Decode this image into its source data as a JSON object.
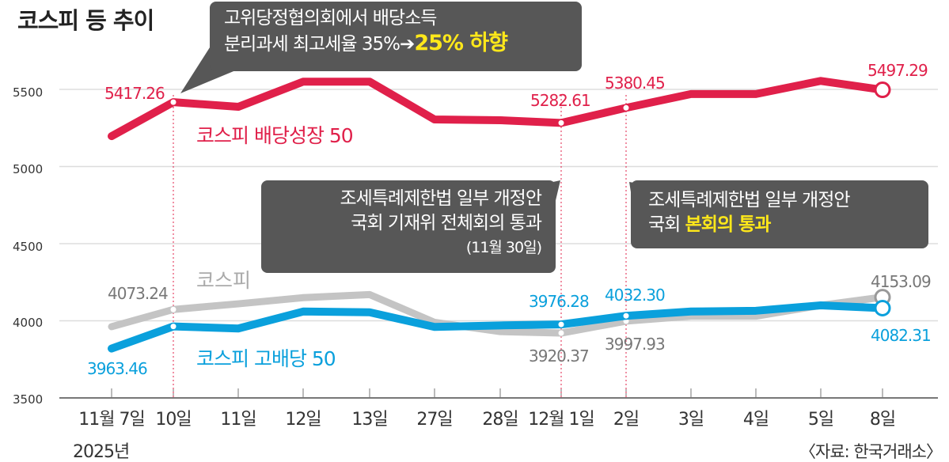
{
  "chart_data": {
    "type": "line",
    "title": "코스피 등 추이",
    "categories": [
      "11월 7일",
      "10일",
      "11일",
      "12일",
      "13일",
      "27일",
      "28일",
      "12월 1일",
      "2일",
      "3일",
      "4일",
      "5일",
      "8일"
    ],
    "year_label": "2025년",
    "source": "〈자료: 한국거래소〉",
    "ylim": [
      3500,
      5600
    ],
    "yticks": [
      "5500",
      "5000",
      "4500",
      "4000",
      "3500"
    ],
    "grid": true,
    "series": [
      {
        "name": "코스피 배당성장 50",
        "color": "#e0204a",
        "values": [
          5197,
          5417.26,
          5387,
          5550,
          5550,
          5305,
          5300,
          5282.61,
          5380.45,
          5470,
          5470,
          5555,
          5497.29
        ]
      },
      {
        "name": "코스피",
        "color": "#c4c4c4",
        "values": [
          3962,
          4073.24,
          4110,
          4150,
          4170,
          3990,
          3930,
          3920.37,
          3997.93,
          4030,
          4030,
          4100,
          4153.09
        ]
      },
      {
        "name": "코스피 고배당 50",
        "color": "#0aa0dc",
        "values": [
          3820,
          3963.46,
          3950,
          4060,
          4055,
          3960,
          3970,
          3976.28,
          4032.3,
          4060,
          4065,
          4100,
          4082.31
        ]
      }
    ],
    "data_labels": {
      "red_10": "5417.26",
      "red_dec1": "5282.61",
      "red_2": "5380.45",
      "red_8": "5497.29",
      "gray_10": "4073.24",
      "gray_dec1": "3920.37",
      "gray_2": "3997.93",
      "gray_8": "4153.09",
      "blue_7": "3963.46",
      "blue_dec1": "3976.28",
      "blue_2": "4032.30",
      "blue_8": "4082.31"
    },
    "annotations": {
      "a1_line1": "고위당정협의회에서 배당소득",
      "a1_line2": "분리과세 최고세율 35%",
      "a1_arrow": "➔",
      "a1_highlight": "25% 하향",
      "a2_line1": "조세특례제한법 일부 개정안",
      "a2_line2": "국회 기재위 전체회의 통과",
      "a2_line3": "(11월 30일)",
      "a3_line1": "조세특례제한법 일부 개정안",
      "a3_line2": "국회",
      "a3_highlight": "본회의 통과"
    }
  }
}
